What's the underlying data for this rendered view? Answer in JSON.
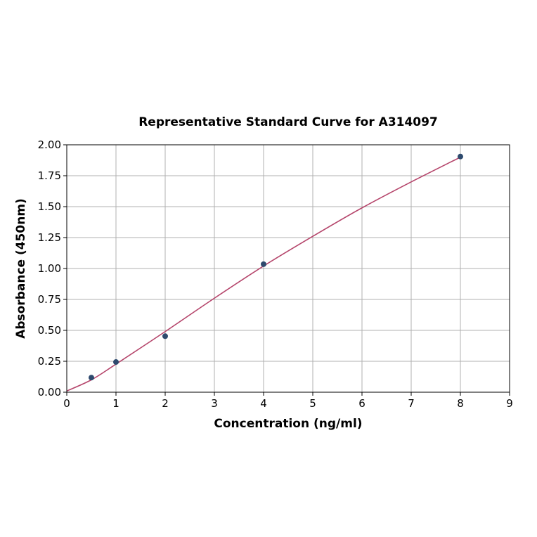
{
  "chart_data": {
    "type": "scatter",
    "title": "Representative Standard Curve for A314097",
    "xlabel": "Concentration (ng/ml)",
    "ylabel": "Absorbance (450nm)",
    "xlim": [
      0,
      9
    ],
    "ylim": [
      0,
      2.0
    ],
    "xticks": [
      "0",
      "1",
      "2",
      "3",
      "4",
      "5",
      "6",
      "7",
      "8",
      "9"
    ],
    "yticks": [
      "0.00",
      "0.25",
      "0.50",
      "0.75",
      "1.00",
      "1.25",
      "1.50",
      "1.75",
      "2.00"
    ],
    "grid": true,
    "points": {
      "x": [
        0.5,
        1,
        2,
        4,
        8
      ],
      "y": [
        0.118,
        0.244,
        0.453,
        1.035,
        1.905
      ],
      "color": "#2e4a6e"
    },
    "fit_curve": {
      "x": [
        0,
        0.5,
        1,
        2,
        3,
        4,
        5,
        6,
        7,
        8
      ],
      "y": [
        0.01,
        0.1,
        0.227,
        0.49,
        0.76,
        1.02,
        1.26,
        1.49,
        1.7,
        1.9
      ],
      "color": "#b5456b"
    }
  }
}
